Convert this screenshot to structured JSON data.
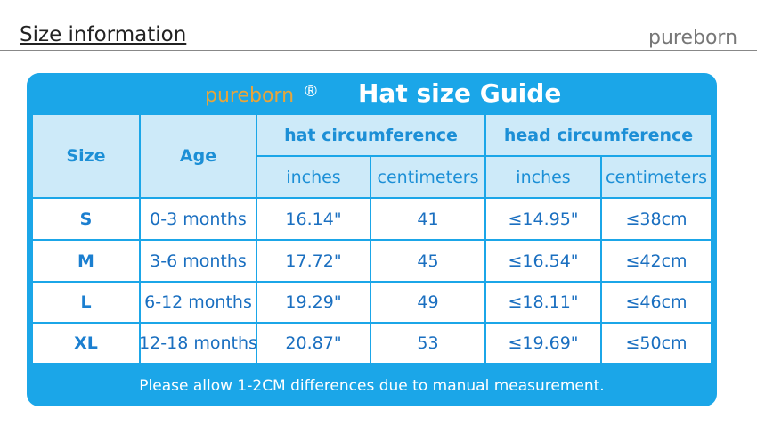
{
  "header": {
    "title": "Size information",
    "logo": "pureborn"
  },
  "guide": {
    "logo": "pureborn",
    "registered": "®",
    "title": "Hat size Guide"
  },
  "table": {
    "headers": {
      "size": "Size",
      "age": "Age",
      "hat": "hat circumference",
      "head": "head circumference",
      "units": [
        "inches",
        "centimeters",
        "inches",
        "centimeters"
      ]
    },
    "rows": [
      [
        "S",
        "0-3 months",
        "16.14\"",
        "41",
        "≤14.95\"",
        "≤38cm"
      ],
      [
        "M",
        "3-6 months",
        "17.72\"",
        "45",
        "≤16.54\"",
        "≤42cm"
      ],
      [
        "L",
        "6-12 months",
        "19.29\"",
        "49",
        "≤18.11\"",
        "≤46cm"
      ],
      [
        "XL",
        "12-18 months",
        "20.87\"",
        "53",
        "≤19.69\"",
        "≤50cm"
      ]
    ]
  },
  "footer": "Please allow 1-2CM differences due to manual measurement."
}
